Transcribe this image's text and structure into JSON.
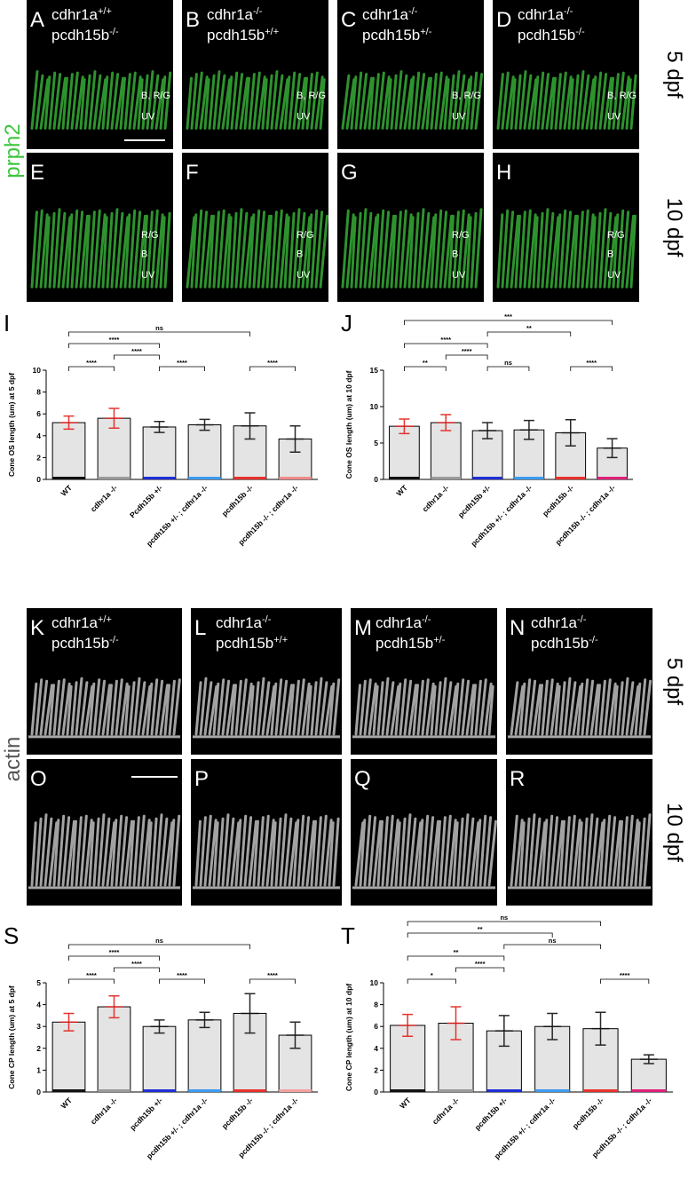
{
  "figure": {
    "prph2_label": "prph2",
    "actin_label": "actin",
    "image_rows": [
      {
        "stage": "5 dpf",
        "panels": [
          {
            "letter": "A",
            "genotype": [
              {
                "gene": "cdhr1a",
                "allele": "+/+"
              },
              {
                "gene": "pcdh15b",
                "allele": "-/-"
              }
            ],
            "layers": [
              "B, R/G",
              "UV"
            ]
          },
          {
            "letter": "B",
            "genotype": [
              {
                "gene": "cdhr1a",
                "allele": "-/-"
              },
              {
                "gene": "pcdh15b",
                "allele": "+/+"
              }
            ],
            "layers": [
              "B, R/G",
              "UV"
            ]
          },
          {
            "letter": "C",
            "genotype": [
              {
                "gene": "cdhr1a",
                "allele": "-/-"
              },
              {
                "gene": "pcdh15b",
                "allele": "+/-"
              }
            ],
            "layers": [
              "B, R/G",
              "UV"
            ]
          },
          {
            "letter": "D",
            "genotype": [
              {
                "gene": "cdhr1a",
                "allele": "-/-"
              },
              {
                "gene": "pcdh15b",
                "allele": "-/-"
              }
            ],
            "layers": [
              "B, R/G",
              "UV"
            ]
          }
        ]
      },
      {
        "stage": "10 dpf",
        "panels": [
          {
            "letter": "E",
            "layers": [
              "R/G",
              "B",
              "UV"
            ]
          },
          {
            "letter": "F",
            "layers": [
              "R/G",
              "B",
              "UV"
            ]
          },
          {
            "letter": "G",
            "layers": [
              "R/G",
              "B",
              "UV"
            ]
          },
          {
            "letter": "H",
            "layers": [
              "R/G",
              "B",
              "UV"
            ]
          }
        ]
      },
      {
        "stage": "5 dpf",
        "panels": [
          {
            "letter": "K",
            "genotype": [
              {
                "gene": "cdhr1a",
                "allele": "+/+"
              },
              {
                "gene": "pcdh15b",
                "allele": "-/-"
              }
            ]
          },
          {
            "letter": "L",
            "genotype": [
              {
                "gene": "cdhr1a",
                "allele": "-/-"
              },
              {
                "gene": "pcdh15b",
                "allele": "+/+"
              }
            ]
          },
          {
            "letter": "M",
            "genotype": [
              {
                "gene": "cdhr1a",
                "allele": "-/-"
              },
              {
                "gene": "pcdh15b",
                "allele": "+/-"
              }
            ]
          },
          {
            "letter": "N",
            "genotype": [
              {
                "gene": "cdhr1a",
                "allele": "-/-"
              },
              {
                "gene": "pcdh15b",
                "allele": "-/-"
              }
            ]
          }
        ]
      },
      {
        "stage": "10 dpf",
        "panels": [
          {
            "letter": "O"
          },
          {
            "letter": "P"
          },
          {
            "letter": "Q"
          },
          {
            "letter": "R"
          }
        ]
      }
    ]
  },
  "chart_data": [
    {
      "type": "bar",
      "panel": "I",
      "ylabel": "Cone OS length (um) at 5 dpf",
      "categories": [
        "WT",
        "cdhr1a -/-",
        "Pcdh15b +/-",
        "pcdh15b +/- ; cdhr1a -/-",
        "pcdh15b -/-",
        "pcdh15b -/- ; cdhr1a -/-"
      ],
      "values": [
        5.2,
        5.6,
        4.8,
        5.0,
        4.9,
        3.7
      ],
      "errors": [
        0.6,
        0.9,
        0.5,
        0.5,
        1.2,
        1.2
      ],
      "colors": [
        "#111111",
        "#9a9a9a",
        "#1f2fd6",
        "#3d9bf0",
        "#e8322c",
        "#f08a8a"
      ],
      "error_colors": [
        "#e0201c",
        "#e0201c",
        "#111111",
        "#111111",
        "#111111",
        "#111111"
      ],
      "ylim": [
        0,
        10
      ],
      "yticks": [
        0,
        2,
        4,
        6,
        8,
        10
      ],
      "comparisons": [
        {
          "pair": [
            0,
            1
          ],
          "label": "****"
        },
        {
          "pair": [
            1,
            2
          ],
          "label": "****"
        },
        {
          "pair": [
            2,
            3
          ],
          "label": "****"
        },
        {
          "pair": [
            4,
            5
          ],
          "label": "****"
        },
        {
          "pair": [
            0,
            2
          ],
          "label": "****"
        },
        {
          "pair": [
            0,
            4
          ],
          "label": "ns"
        }
      ]
    },
    {
      "type": "bar",
      "panel": "J",
      "ylabel": "Cone OS length (um) at 10 dpf",
      "categories": [
        "WT",
        "cdhr1a -/-",
        "pcdh15b +/-",
        "pcdh15b +/- ; cdhr1a -/-",
        "pcdh15b -/-",
        "pcdh15b -/- ; cdhr1a -/-"
      ],
      "values": [
        7.3,
        7.8,
        6.7,
        6.8,
        6.4,
        4.3
      ],
      "errors": [
        1.0,
        1.1,
        1.1,
        1.3,
        1.8,
        1.3
      ],
      "colors": [
        "#111111",
        "#9a9a9a",
        "#1f2fd6",
        "#3d9bf0",
        "#e8322c",
        "#e0207a"
      ],
      "error_colors": [
        "#e0201c",
        "#e0201c",
        "#111111",
        "#111111",
        "#111111",
        "#111111"
      ],
      "ylim": [
        0,
        15
      ],
      "yticks": [
        0,
        5,
        10,
        15
      ],
      "comparisons": [
        {
          "pair": [
            0,
            1
          ],
          "label": "**"
        },
        {
          "pair": [
            1,
            2
          ],
          "label": "****"
        },
        {
          "pair": [
            2,
            3
          ],
          "label": "ns"
        },
        {
          "pair": [
            4,
            5
          ],
          "label": "****"
        },
        {
          "pair": [
            0,
            2
          ],
          "label": "****"
        },
        {
          "pair": [
            2,
            4
          ],
          "label": "**"
        },
        {
          "pair": [
            0,
            5
          ],
          "label": "***"
        }
      ]
    },
    {
      "type": "bar",
      "panel": "S",
      "ylabel": "Cone CP length (um) at 5 dpf",
      "categories": [
        "WT",
        "cdhr1a -/-",
        "pcdh15b +/-",
        "pcdh15b +/- ; cdhr1a -/-",
        "pcdh15b -/-",
        "pcdh15b -/- ; cdhr1a -/-"
      ],
      "values": [
        3.2,
        3.9,
        3.0,
        3.3,
        3.6,
        2.6
      ],
      "errors": [
        0.4,
        0.5,
        0.3,
        0.35,
        0.9,
        0.6
      ],
      "colors": [
        "#111111",
        "#9a9a9a",
        "#1f2fd6",
        "#3d9bf0",
        "#e8322c",
        "#f4a0a0"
      ],
      "error_colors": [
        "#e0201c",
        "#e0201c",
        "#111111",
        "#111111",
        "#111111",
        "#111111"
      ],
      "ylim": [
        0,
        5
      ],
      "yticks": [
        0,
        1,
        2,
        3,
        4,
        5
      ],
      "comparisons": [
        {
          "pair": [
            0,
            1
          ],
          "label": "****"
        },
        {
          "pair": [
            1,
            2
          ],
          "label": "****"
        },
        {
          "pair": [
            2,
            3
          ],
          "label": "****"
        },
        {
          "pair": [
            4,
            5
          ],
          "label": "****"
        },
        {
          "pair": [
            0,
            2
          ],
          "label": "****"
        },
        {
          "pair": [
            0,
            4
          ],
          "label": "ns"
        }
      ]
    },
    {
      "type": "bar",
      "panel": "T",
      "ylabel": "Cone CP length (um) at 10 dpf",
      "categories": [
        "WT",
        "cdhr1a -/-",
        "pcdh15b +/-",
        "pcdh15b +/- ; cdhr1a -/-",
        "pcdh15b -/-",
        "pcdh15b -/- ; cdhr1a -/-"
      ],
      "values": [
        6.1,
        6.3,
        5.6,
        6.0,
        5.8,
        3.0
      ],
      "errors": [
        1.0,
        1.5,
        1.4,
        1.2,
        1.5,
        0.4
      ],
      "colors": [
        "#111111",
        "#9a9a9a",
        "#1f2fd6",
        "#3d9bf0",
        "#e8322c",
        "#e0207a"
      ],
      "error_colors": [
        "#e0201c",
        "#e0201c",
        "#111111",
        "#111111",
        "#111111",
        "#111111"
      ],
      "ylim": [
        0,
        10
      ],
      "yticks": [
        0,
        2,
        4,
        6,
        8,
        10
      ],
      "comparisons": [
        {
          "pair": [
            0,
            1
          ],
          "label": "*"
        },
        {
          "pair": [
            1,
            2
          ],
          "label": "****"
        },
        {
          "pair": [
            4,
            5
          ],
          "label": "****"
        },
        {
          "pair": [
            0,
            2
          ],
          "label": "**"
        },
        {
          "pair": [
            2,
            4
          ],
          "label": "ns"
        },
        {
          "pair": [
            0,
            3
          ],
          "label": "**"
        },
        {
          "pair": [
            0,
            4
          ],
          "label": "ns"
        }
      ]
    }
  ]
}
